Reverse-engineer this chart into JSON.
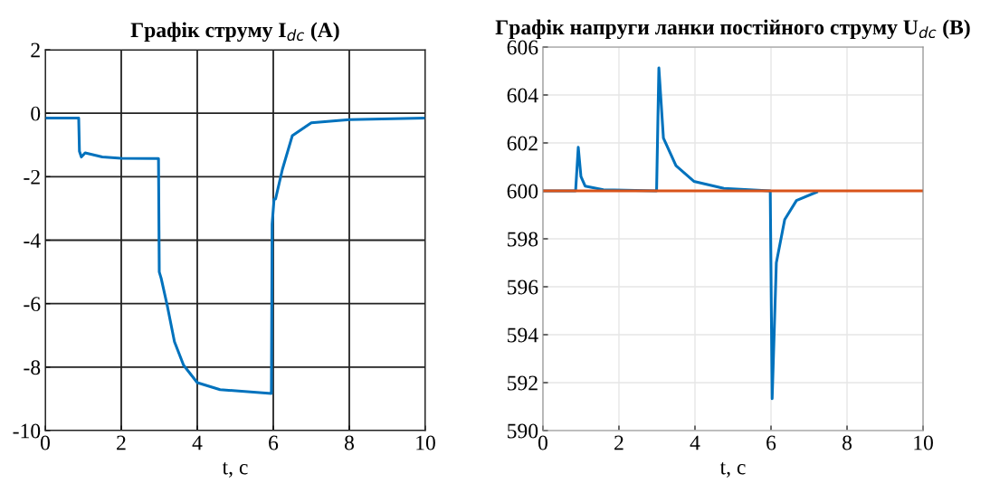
{
  "chart_data": [
    {
      "type": "line",
      "title": "Графік струму I$_{dc}$ (A)",
      "xlabel": "t, с",
      "xlim": [
        0,
        10
      ],
      "xticks": [
        0,
        2,
        4,
        6,
        8,
        10
      ],
      "ylim": [
        -10,
        2
      ],
      "yticks": [
        -10,
        -8,
        -6,
        -4,
        -2,
        0,
        2
      ],
      "grid": true,
      "series": [
        {
          "color": "#0072bd",
          "x": [
            0,
            0.88,
            0.9,
            0.95,
            1.05,
            1.5,
            2,
            2.95,
            2.98,
            3.0,
            3.05,
            3.21,
            3.4,
            3.64,
            4.0,
            4.6,
            5.95,
            5.97,
            6.02,
            6.06,
            6.24,
            6.5,
            7.0,
            8.0,
            10
          ],
          "values": [
            -0.15,
            -0.15,
            -1.2,
            -1.38,
            -1.25,
            -1.38,
            -1.42,
            -1.43,
            -1.43,
            -5.0,
            -5.2,
            -6.06,
            -7.2,
            -7.94,
            -8.49,
            -8.71,
            -8.83,
            -3.5,
            -2.71,
            -2.7,
            -1.77,
            -0.71,
            -0.3,
            -0.2,
            -0.15
          ]
        }
      ]
    },
    {
      "type": "line",
      "title": "Графік напруги ланки постійного струму U$_{dc}$ (B)",
      "xlabel": "t, с",
      "xlim": [
        0,
        10
      ],
      "xticks": [
        0,
        2,
        4,
        6,
        8,
        10
      ],
      "ylim": [
        590,
        606
      ],
      "yticks": [
        590,
        592,
        594,
        596,
        598,
        600,
        602,
        604,
        606
      ],
      "grid": true,
      "series": [
        {
          "color": "#0072bd",
          "x": [
            0,
            0.86,
            0.93,
            1.0,
            1.11,
            1.59,
            2.99,
            3.05,
            3.17,
            3.5,
            3.97,
            4.76,
            5.98,
            6.03,
            6.14,
            6.36,
            6.67,
            7.2
          ],
          "values": [
            600.0,
            600.0,
            601.82,
            600.6,
            600.2,
            600.05,
            600.0,
            605.13,
            602.2,
            601.05,
            600.4,
            600.1,
            600.0,
            591.33,
            597.0,
            598.8,
            599.6,
            599.95
          ]
        },
        {
          "color": "#d95319",
          "x": [
            0,
            10
          ],
          "values": [
            600,
            600
          ]
        }
      ]
    }
  ]
}
